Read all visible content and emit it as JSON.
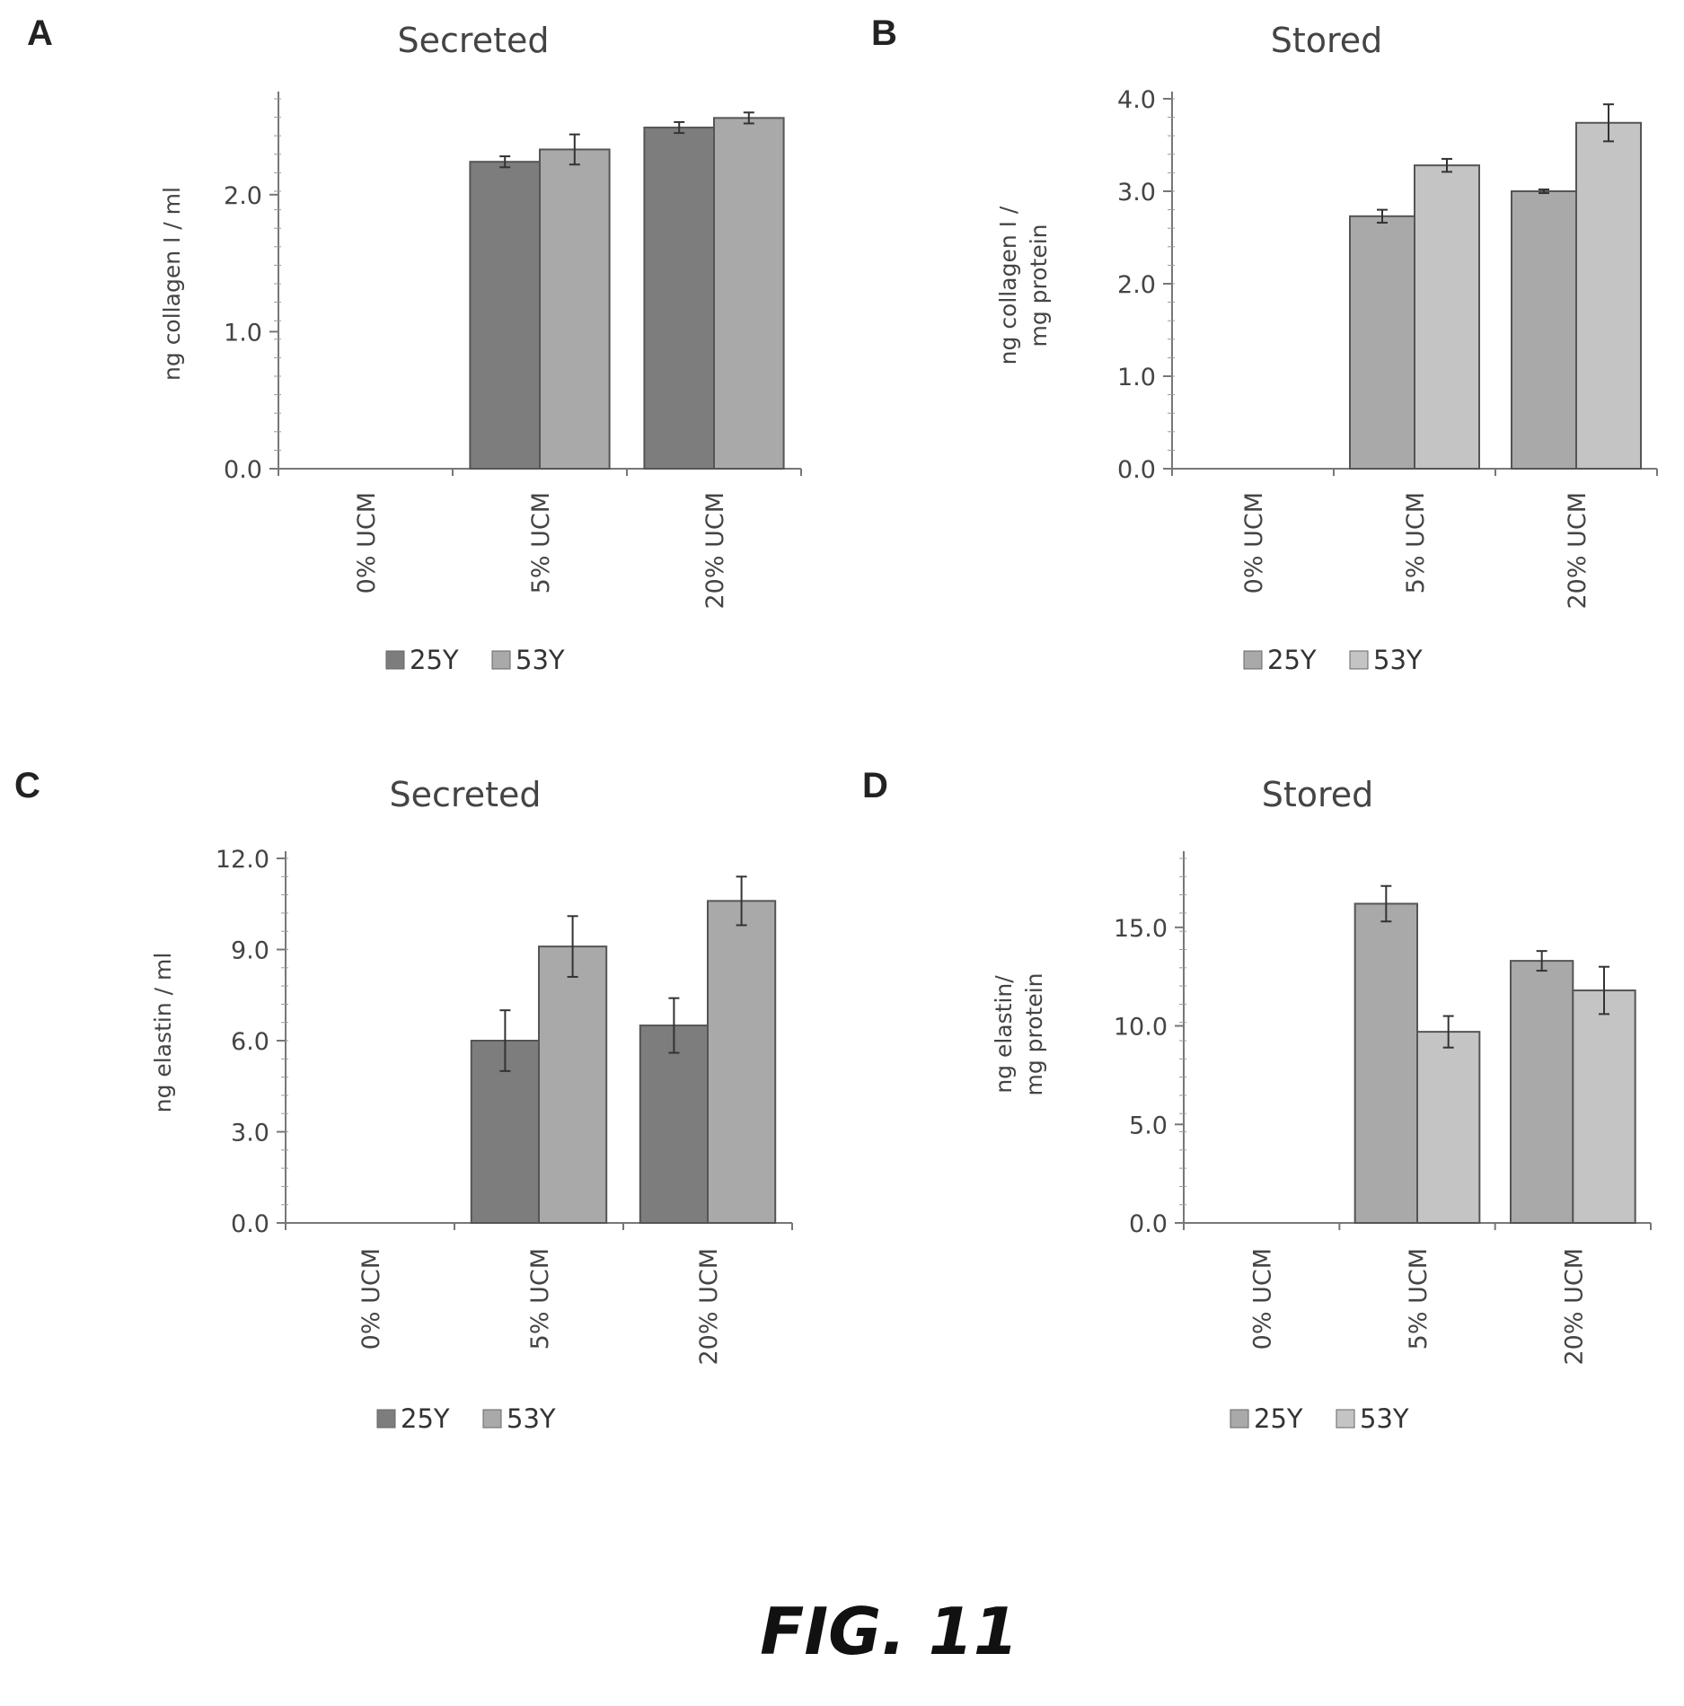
{
  "figure_label": "FIG. 11",
  "colors": {
    "bar_dark": "#7d7d7d",
    "bar_light": "#a9a9a9",
    "bar_lighter": "#c4c4c4",
    "axis": "#777777"
  },
  "chart_data": [
    {
      "panel": "A",
      "type": "bar",
      "title": "Secreted",
      "ylabel": [
        "ng collagen I / ml"
      ],
      "categories": [
        "0% UCM",
        "5% UCM",
        "20% UCM"
      ],
      "ylim": [
        0,
        2.7
      ],
      "yticks": [
        "0.0",
        "1.0",
        "2.0"
      ],
      "ytick_values": [
        0,
        1,
        2
      ],
      "series": [
        {
          "name": "25Y",
          "values": [
            0,
            2.24,
            2.49
          ],
          "errors": [
            0,
            0.04,
            0.04
          ]
        },
        {
          "name": "53Y",
          "values": [
            0,
            2.33,
            2.56
          ],
          "errors": [
            0,
            0.11,
            0.04
          ]
        }
      ],
      "series_colors": [
        "#7d7d7d",
        "#a9a9a9"
      ],
      "legend": "bottom"
    },
    {
      "panel": "B",
      "type": "bar",
      "title": "Stored",
      "ylabel": [
        "ng collagen I /",
        "mg protein"
      ],
      "categories": [
        "0% UCM",
        "5% UCM",
        "20% UCM"
      ],
      "ylim": [
        0,
        4.0
      ],
      "yticks": [
        "0.0",
        "1.0",
        "2.0",
        "3.0",
        "4.0"
      ],
      "ytick_values": [
        0,
        1,
        2,
        3,
        4
      ],
      "series": [
        {
          "name": "25Y",
          "values": [
            0,
            2.73,
            3.0
          ],
          "errors": [
            0,
            0.07,
            0.02
          ]
        },
        {
          "name": "53Y",
          "values": [
            0,
            3.28,
            3.74
          ],
          "errors": [
            0,
            0.07,
            0.2
          ]
        }
      ],
      "series_colors": [
        "#a9a9a9",
        "#c4c4c4"
      ],
      "legend": "bottom"
    },
    {
      "panel": "C",
      "type": "bar",
      "title": "Secreted",
      "ylabel": [
        "ng elastin / ml"
      ],
      "categories": [
        "0% UCM",
        "5% UCM",
        "20% UCM"
      ],
      "ylim": [
        0,
        12.0
      ],
      "yticks": [
        "0.0",
        "3.0",
        "6.0",
        "9.0",
        "12.0"
      ],
      "ytick_values": [
        0,
        3,
        6,
        9,
        12
      ],
      "series": [
        {
          "name": "25Y",
          "values": [
            0,
            6.0,
            6.5
          ],
          "errors": [
            0,
            1.0,
            0.9
          ]
        },
        {
          "name": "53Y",
          "values": [
            0,
            9.1,
            10.6
          ],
          "errors": [
            0,
            1.0,
            0.8
          ]
        }
      ],
      "series_colors": [
        "#7d7d7d",
        "#a9a9a9"
      ],
      "legend": "bottom"
    },
    {
      "panel": "D",
      "type": "bar",
      "title": "Stored",
      "ylabel": [
        "ng elastin/",
        "mg protein"
      ],
      "categories": [
        "0% UCM",
        "5% UCM",
        "20% UCM"
      ],
      "ylim": [
        0,
        18.5
      ],
      "yticks": [
        "0.0",
        "5.0",
        "10.0",
        "15.0"
      ],
      "ytick_values": [
        0,
        5,
        10,
        15
      ],
      "series": [
        {
          "name": "25Y",
          "values": [
            0,
            16.2,
            13.3
          ],
          "errors": [
            0,
            0.9,
            0.5
          ]
        },
        {
          "name": "53Y",
          "values": [
            0,
            9.7,
            11.8
          ],
          "errors": [
            0,
            0.8,
            1.2
          ]
        }
      ],
      "series_colors": [
        "#a9a9a9",
        "#c4c4c4"
      ],
      "legend": "bottom"
    }
  ]
}
